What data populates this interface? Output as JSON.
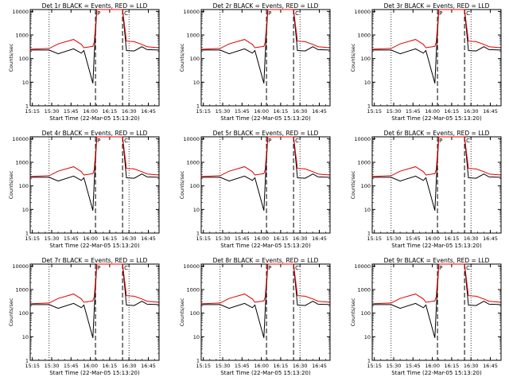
{
  "shared": {
    "ylabel": "Counts/sec",
    "xlabel": "Start Time (22-Mar-05 15:13:20)",
    "x_tick_labels": [
      "15:15",
      "15:30",
      "15:45",
      "16:00",
      "16:15",
      "16:30",
      "16:45"
    ],
    "y_tick_labels": [
      "1",
      "10",
      "100",
      "1000",
      "10000"
    ],
    "flag_labels": [
      "P",
      "C"
    ],
    "colors": {
      "events": "#000000",
      "lld": "#e00000"
    }
  },
  "chart_data": [
    {
      "type": "line",
      "title": "Det 1r BLACK = Events, RED = LLD",
      "xlabel": "Start Time (22-Mar-05 15:13:20)",
      "ylabel": "Counts/sec",
      "y_scale": "log",
      "xlim": [
        "15:13:20",
        "16:53:20"
      ],
      "ylim": [
        1,
        12000
      ],
      "x": [
        "15:13",
        "15:28",
        "15:35",
        "15:47",
        "15:53",
        "15:55",
        "16:02",
        "16:03",
        "16:05",
        "16:10",
        "16:16",
        "16:20",
        "16:25",
        "16:28",
        "16:34",
        "16:40",
        "16:44",
        "16:53"
      ],
      "series": [
        {
          "name": "Events",
          "color": "#000000",
          "values": [
            230,
            230,
            160,
            260,
            170,
            220,
            9,
            150,
            12000,
            12000,
            12000,
            12000,
            12000,
            220,
            210,
            320,
            240,
            230
          ]
        },
        {
          "name": "LLD",
          "color": "#e00000",
          "values": [
            250,
            270,
            420,
            650,
            400,
            290,
            330,
            500,
            12000,
            12000,
            12000,
            12000,
            12000,
            550,
            520,
            400,
            320,
            290
          ]
        }
      ],
      "dotted_lines": [
        "15:28",
        "16:30"
      ],
      "dashed_lines": [
        "16:04",
        "16:25"
      ]
    },
    {
      "type": "line",
      "title": "Det 2r BLACK = Events, RED = LLD",
      "xlabel": "Start Time (22-Mar-05 15:13:20)",
      "ylabel": "Counts/sec",
      "y_scale": "log",
      "xlim": [
        "15:13:20",
        "16:53:20"
      ],
      "ylim": [
        1,
        12000
      ],
      "x": [
        "15:13",
        "15:28",
        "15:35",
        "15:47",
        "15:53",
        "15:55",
        "16:02",
        "16:03",
        "16:05",
        "16:10",
        "16:16",
        "16:20",
        "16:25",
        "16:28",
        "16:34",
        "16:40",
        "16:44",
        "16:53"
      ],
      "series": [
        {
          "name": "Events",
          "color": "#000000",
          "values": [
            230,
            230,
            160,
            260,
            170,
            220,
            9,
            150,
            12000,
            12000,
            12000,
            12000,
            12000,
            220,
            210,
            320,
            240,
            230
          ]
        },
        {
          "name": "LLD",
          "color": "#e00000",
          "values": [
            250,
            270,
            420,
            650,
            400,
            290,
            330,
            500,
            12000,
            12000,
            12000,
            12000,
            12000,
            550,
            520,
            400,
            320,
            290
          ]
        }
      ],
      "dotted_lines": [
        "15:28",
        "16:30"
      ],
      "dashed_lines": [
        "16:04",
        "16:25"
      ]
    },
    {
      "type": "line",
      "title": "Det 3r BLACK = Events, RED = LLD",
      "xlabel": "Start Time (22-Mar-05 15:13:20)",
      "ylabel": "Counts/sec",
      "y_scale": "log",
      "xlim": [
        "15:13:20",
        "16:53:20"
      ],
      "ylim": [
        1,
        12000
      ],
      "x": [
        "15:13",
        "15:28",
        "15:35",
        "15:47",
        "15:53",
        "15:55",
        "16:02",
        "16:03",
        "16:05",
        "16:10",
        "16:16",
        "16:20",
        "16:25",
        "16:28",
        "16:34",
        "16:40",
        "16:44",
        "16:53"
      ],
      "series": [
        {
          "name": "Events",
          "color": "#000000",
          "values": [
            230,
            230,
            160,
            260,
            170,
            220,
            9,
            150,
            12000,
            12000,
            12000,
            12000,
            12000,
            220,
            210,
            320,
            240,
            230
          ]
        },
        {
          "name": "LLD",
          "color": "#e00000",
          "values": [
            250,
            270,
            420,
            650,
            400,
            290,
            330,
            500,
            12000,
            12000,
            12000,
            12000,
            12000,
            550,
            520,
            400,
            320,
            290
          ]
        }
      ],
      "dotted_lines": [
        "15:28",
        "16:30"
      ],
      "dashed_lines": [
        "16:04",
        "16:25"
      ]
    },
    {
      "type": "line",
      "title": "Det 4r BLACK = Events, RED = LLD",
      "xlabel": "Start Time (22-Mar-05 15:13:20)",
      "ylabel": "Counts/sec",
      "y_scale": "log",
      "xlim": [
        "15:13:20",
        "16:53:20"
      ],
      "ylim": [
        1,
        12000
      ],
      "x": [
        "15:13",
        "15:28",
        "15:35",
        "15:47",
        "15:53",
        "15:55",
        "16:02",
        "16:03",
        "16:05",
        "16:10",
        "16:16",
        "16:20",
        "16:25",
        "16:28",
        "16:34",
        "16:40",
        "16:44",
        "16:53"
      ],
      "series": [
        {
          "name": "Events",
          "color": "#000000",
          "values": [
            230,
            230,
            160,
            260,
            170,
            220,
            9,
            150,
            12000,
            12000,
            12000,
            12000,
            12000,
            220,
            210,
            320,
            240,
            230
          ]
        },
        {
          "name": "LLD",
          "color": "#e00000",
          "values": [
            250,
            270,
            420,
            650,
            400,
            290,
            330,
            500,
            12000,
            12000,
            12000,
            12000,
            12000,
            550,
            520,
            400,
            320,
            290
          ]
        }
      ],
      "dotted_lines": [
        "15:28",
        "16:30"
      ],
      "dashed_lines": [
        "16:04",
        "16:25"
      ]
    },
    {
      "type": "line",
      "title": "Det 5r BLACK = Events, RED = LLD",
      "xlabel": "Start Time (22-Mar-05 15:13:20)",
      "ylabel": "Counts/sec",
      "y_scale": "log",
      "xlim": [
        "15:13:20",
        "16:53:20"
      ],
      "ylim": [
        1,
        12000
      ],
      "x": [
        "15:13",
        "15:28",
        "15:35",
        "15:47",
        "15:53",
        "15:55",
        "16:02",
        "16:03",
        "16:05",
        "16:10",
        "16:16",
        "16:20",
        "16:25",
        "16:28",
        "16:34",
        "16:40",
        "16:44",
        "16:53"
      ],
      "series": [
        {
          "name": "Events",
          "color": "#000000",
          "values": [
            230,
            230,
            160,
            260,
            170,
            220,
            9,
            150,
            12000,
            12000,
            12000,
            12000,
            12000,
            220,
            210,
            320,
            240,
            230
          ]
        },
        {
          "name": "LLD",
          "color": "#e00000",
          "values": [
            250,
            270,
            420,
            650,
            400,
            290,
            330,
            500,
            12000,
            12000,
            12000,
            12000,
            12000,
            550,
            520,
            400,
            320,
            290
          ]
        }
      ],
      "dotted_lines": [
        "15:28",
        "16:30"
      ],
      "dashed_lines": [
        "16:04",
        "16:25"
      ]
    },
    {
      "type": "line",
      "title": "Det 6r BLACK = Events, RED = LLD",
      "xlabel": "Start Time (22-Mar-05 15:13:20)",
      "ylabel": "Counts/sec",
      "y_scale": "log",
      "xlim": [
        "15:13:20",
        "16:53:20"
      ],
      "ylim": [
        1,
        12000
      ],
      "x": [
        "15:13",
        "15:28",
        "15:35",
        "15:47",
        "15:53",
        "15:55",
        "16:02",
        "16:03",
        "16:05",
        "16:10",
        "16:16",
        "16:20",
        "16:25",
        "16:28",
        "16:34",
        "16:40",
        "16:44",
        "16:53"
      ],
      "series": [
        {
          "name": "Events",
          "color": "#000000",
          "values": [
            230,
            230,
            160,
            260,
            170,
            220,
            9,
            150,
            12000,
            12000,
            12000,
            12000,
            12000,
            220,
            210,
            320,
            240,
            230
          ]
        },
        {
          "name": "LLD",
          "color": "#e00000",
          "values": [
            250,
            270,
            420,
            650,
            400,
            290,
            330,
            500,
            12000,
            12000,
            12000,
            12000,
            12000,
            550,
            520,
            400,
            320,
            290
          ]
        }
      ],
      "dotted_lines": [
        "15:28",
        "16:30"
      ],
      "dashed_lines": [
        "16:04",
        "16:25"
      ]
    },
    {
      "type": "line",
      "title": "Det 7r BLACK = Events, RED = LLD",
      "xlabel": "Start Time (22-Mar-05 15:13:20)",
      "ylabel": "Counts/sec",
      "y_scale": "log",
      "xlim": [
        "15:13:20",
        "16:53:20"
      ],
      "ylim": [
        1,
        12000
      ],
      "x": [
        "15:13",
        "15:28",
        "15:35",
        "15:47",
        "15:53",
        "15:55",
        "16:02",
        "16:03",
        "16:05",
        "16:10",
        "16:16",
        "16:20",
        "16:25",
        "16:28",
        "16:34",
        "16:40",
        "16:44",
        "16:53"
      ],
      "series": [
        {
          "name": "Events",
          "color": "#000000",
          "values": [
            230,
            230,
            160,
            260,
            170,
            220,
            9,
            150,
            12000,
            12000,
            12000,
            12000,
            12000,
            220,
            210,
            320,
            240,
            230
          ]
        },
        {
          "name": "LLD",
          "color": "#e00000",
          "values": [
            250,
            270,
            420,
            650,
            400,
            290,
            330,
            500,
            12000,
            12000,
            12000,
            12000,
            12000,
            550,
            520,
            400,
            320,
            290
          ]
        }
      ],
      "dotted_lines": [
        "15:28",
        "16:30"
      ],
      "dashed_lines": [
        "16:04",
        "16:25"
      ]
    },
    {
      "type": "line",
      "title": "Det 8r BLACK = Events, RED = LLD",
      "xlabel": "Start Time (22-Mar-05 15:13:20)",
      "ylabel": "Counts/sec",
      "y_scale": "log",
      "xlim": [
        "15:13:20",
        "16:53:20"
      ],
      "ylim": [
        1,
        12000
      ],
      "x": [
        "15:13",
        "15:28",
        "15:35",
        "15:47",
        "15:53",
        "15:55",
        "16:02",
        "16:03",
        "16:05",
        "16:10",
        "16:16",
        "16:20",
        "16:25",
        "16:28",
        "16:34",
        "16:40",
        "16:44",
        "16:53"
      ],
      "series": [
        {
          "name": "Events",
          "color": "#000000",
          "values": [
            230,
            230,
            160,
            260,
            170,
            220,
            9,
            150,
            12000,
            12000,
            12000,
            12000,
            12000,
            220,
            210,
            320,
            240,
            230
          ]
        },
        {
          "name": "LLD",
          "color": "#e00000",
          "values": [
            250,
            270,
            420,
            650,
            400,
            290,
            330,
            500,
            12000,
            12000,
            12000,
            12000,
            12000,
            550,
            520,
            400,
            320,
            290
          ]
        }
      ],
      "dotted_lines": [
        "15:28",
        "16:30"
      ],
      "dashed_lines": [
        "16:04",
        "16:25"
      ]
    },
    {
      "type": "line",
      "title": "Det 9r BLACK = Events, RED = LLD",
      "xlabel": "Start Time (22-Mar-05 15:13:20)",
      "ylabel": "Counts/sec",
      "y_scale": "log",
      "xlim": [
        "15:13:20",
        "16:53:20"
      ],
      "ylim": [
        1,
        12000
      ],
      "x": [
        "15:13",
        "15:28",
        "15:35",
        "15:47",
        "15:53",
        "15:55",
        "16:02",
        "16:03",
        "16:05",
        "16:10",
        "16:16",
        "16:20",
        "16:25",
        "16:28",
        "16:34",
        "16:40",
        "16:44",
        "16:53"
      ],
      "series": [
        {
          "name": "Events",
          "color": "#000000",
          "values": [
            230,
            230,
            160,
            260,
            170,
            220,
            9,
            150,
            12000,
            12000,
            12000,
            12000,
            12000,
            220,
            210,
            320,
            240,
            230
          ]
        },
        {
          "name": "LLD",
          "color": "#e00000",
          "values": [
            250,
            270,
            420,
            650,
            400,
            290,
            330,
            500,
            12000,
            12000,
            12000,
            12000,
            12000,
            550,
            520,
            400,
            320,
            290
          ]
        }
      ],
      "dotted_lines": [
        "15:28",
        "16:30"
      ],
      "dashed_lines": [
        "16:04",
        "16:25"
      ]
    }
  ]
}
